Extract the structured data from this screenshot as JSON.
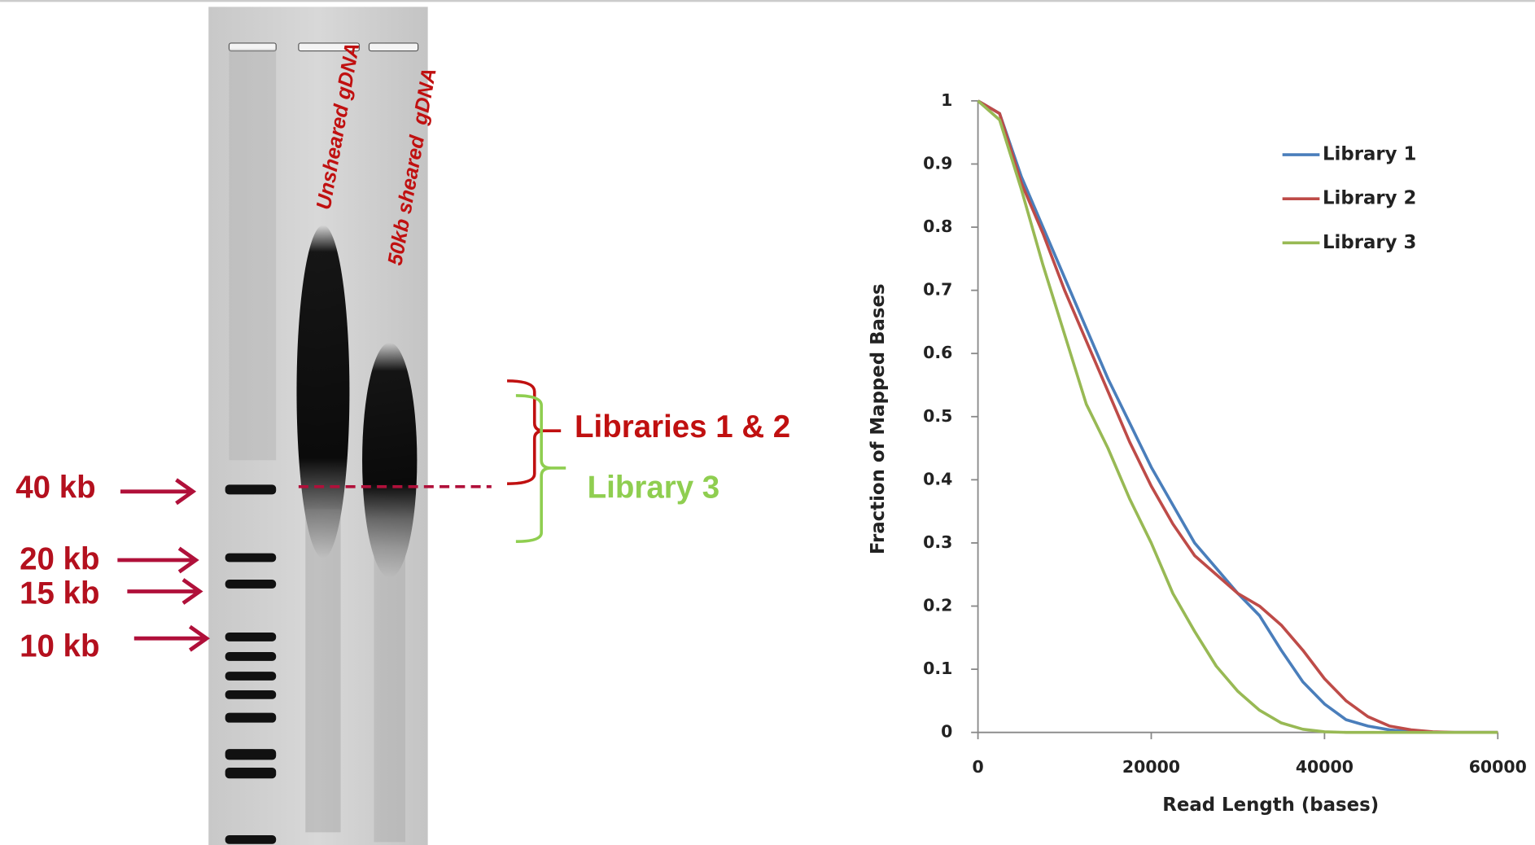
{
  "gel": {
    "lane_labels": [
      "Unsheared gDNA",
      "50kb sheared  gDNA"
    ],
    "markers": [
      "40 kb",
      "20 kb",
      "15 kb",
      "10 kb"
    ],
    "brackets": [
      "Libraries 1 & 2",
      "Library 3"
    ]
  },
  "chart_data": {
    "type": "line",
    "xlabel": "Read Length (bases)",
    "ylabel": "Fraction of Mapped Bases",
    "x": [
      0,
      2500,
      5000,
      7500,
      10000,
      12500,
      15000,
      17500,
      20000,
      22500,
      25000,
      27500,
      30000,
      32500,
      35000,
      37500,
      40000,
      42500,
      45000,
      47500,
      50000,
      52500,
      55000,
      57500,
      60000
    ],
    "series": [
      {
        "name": "Library 1",
        "color": "#4a7ebb",
        "values": [
          1,
          0.98,
          0.88,
          0.8,
          0.72,
          0.64,
          0.56,
          0.49,
          0.42,
          0.36,
          0.3,
          0.26,
          0.22,
          0.185,
          0.13,
          0.08,
          0.045,
          0.02,
          0.01,
          0.004,
          0.001,
          0,
          0,
          0,
          0
        ]
      },
      {
        "name": "Library 2",
        "color": "#be4b48",
        "values": [
          1,
          0.98,
          0.87,
          0.79,
          0.7,
          0.62,
          0.54,
          0.46,
          0.39,
          0.33,
          0.28,
          0.25,
          0.22,
          0.2,
          0.17,
          0.13,
          0.085,
          0.05,
          0.025,
          0.01,
          0.004,
          0.001,
          0,
          0,
          0
        ]
      },
      {
        "name": "Library 3",
        "color": "#98b954",
        "values": [
          1,
          0.97,
          0.86,
          0.74,
          0.63,
          0.52,
          0.45,
          0.37,
          0.3,
          0.22,
          0.16,
          0.105,
          0.065,
          0.035,
          0.015,
          0.005,
          0.001,
          0,
          0,
          0,
          0,
          0,
          0,
          0,
          0
        ]
      }
    ],
    "xlim": [
      0,
      60000
    ],
    "ylim": [
      0,
      1
    ],
    "xticks": [
      0,
      20000,
      40000,
      60000
    ],
    "yticks": [
      0,
      0.1,
      0.2,
      0.3,
      0.4,
      0.5,
      0.6,
      0.7,
      0.8,
      0.9,
      1
    ],
    "legend": "upper right"
  }
}
